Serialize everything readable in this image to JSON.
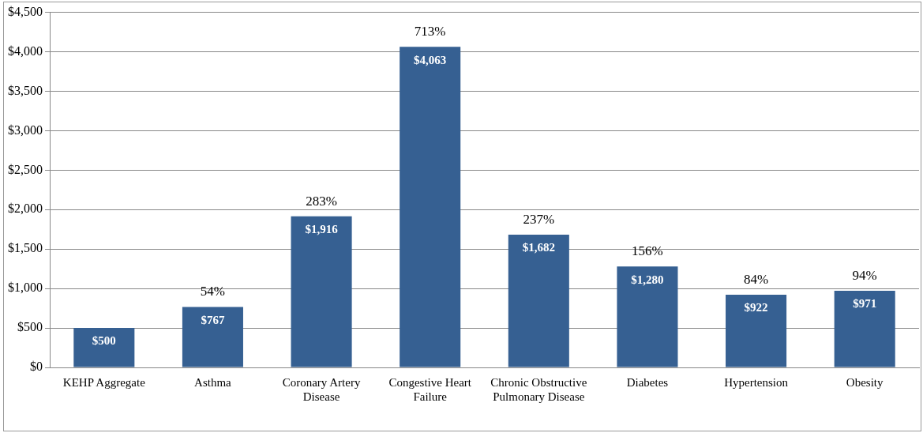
{
  "chart_data": {
    "type": "bar",
    "categories": [
      "KEHP Aggregate",
      "Asthma",
      "Coronary Artery Disease",
      "Congestive Heart Failure",
      "Chronic Obstructive Pulmonary Disease",
      "Diabetes",
      "Hypertension",
      "Obesity"
    ],
    "values": [
      500,
      767,
      1916,
      4063,
      1682,
      1280,
      922,
      971
    ],
    "value_labels": [
      "$500",
      "$767",
      "$1,916",
      "$4,063",
      "$1,682",
      "$1,280",
      "$922",
      "$971"
    ],
    "color": "#366092",
    "ylim": [
      0,
      4500
    ],
    "yticks": [
      {
        "value": 0,
        "label": "$0"
      },
      {
        "value": 500,
        "label": "$500"
      },
      {
        "value": 1000,
        "label": "$1,000"
      },
      {
        "value": 1500,
        "label": "$1,500"
      },
      {
        "value": 2000,
        "label": "$2,000"
      },
      {
        "value": 2500,
        "label": "$2,500"
      },
      {
        "value": 3000,
        "label": "$3,000"
      },
      {
        "value": 3500,
        "label": "$3,500"
      },
      {
        "value": 4000,
        "label": "$4,000"
      },
      {
        "value": 4500,
        "label": "$4,500"
      }
    ],
    "grid": "y",
    "annotations": [
      {
        "text": "54%",
        "x": "Asthma",
        "y": 767
      },
      {
        "text": "283%",
        "x": "Coronary Artery Disease",
        "y": 1916
      },
      {
        "text": "713%",
        "x": "Congestive Heart Failure",
        "y": 4063
      },
      {
        "text": "237%",
        "x": "Chronic Obstructive Pulmonary Disease",
        "y": 1682
      },
      {
        "text": "156%",
        "x": "Diabetes",
        "y": 1280
      },
      {
        "text": "84%",
        "x": "Hypertension",
        "y": 922
      },
      {
        "text": "94%",
        "x": "Obesity",
        "y": 971
      }
    ]
  }
}
